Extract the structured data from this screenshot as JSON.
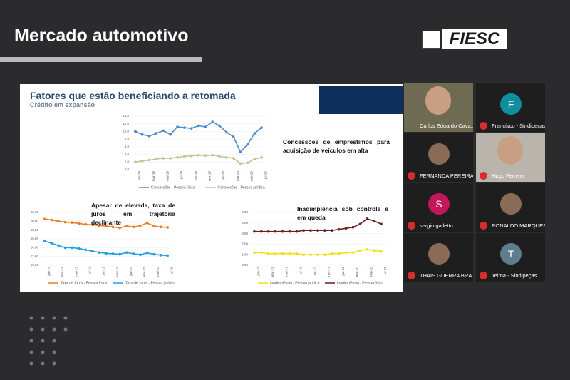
{
  "header": {
    "title": "Mercado automotivo",
    "logo": "FIESC"
  },
  "slide": {
    "title": "Fatores que estão beneficiando a retomada",
    "subtitle": "Crédito em expansão",
    "charts": [
      {
        "type": "line",
        "annotation": "Concessões de empréstimos para aquisição de veículos em alta",
        "categories": [
          "jan-19",
          null,
          "mar-19",
          null,
          "mai-19",
          null,
          "jul-19",
          null,
          "set-19",
          null,
          "nov-19",
          null,
          "jan-20",
          null,
          "mar-20",
          null,
          "mai-20",
          null,
          "jul-20"
        ],
        "ylim": [
          0,
          14
        ],
        "yticks": [
          {
            "value": 0,
            "label": "0,0"
          },
          {
            "value": 2,
            "label": "2,0"
          },
          {
            "value": 4,
            "label": "4,0"
          },
          {
            "value": 6,
            "label": "6,0"
          },
          {
            "value": 8,
            "label": "8,0"
          },
          {
            "value": 10,
            "label": "10,0"
          },
          {
            "value": 12,
            "label": "12,0"
          },
          {
            "value": 14,
            "label": "14,0"
          }
        ],
        "series": [
          {
            "name": "Concessões - Pessoa física",
            "color": "#4a8ccf",
            "values": [
              10,
              9.2,
              8.8,
              9.5,
              10.2,
              9.2,
              11.2,
              11,
              10.8,
              11.5,
              11.2,
              12.5,
              11.5,
              9.8,
              8.6,
              4.6,
              6.6,
              9.5,
              11
            ]
          },
          {
            "name": "Concessões - Pessoa jurídica",
            "color": "#c8bf94",
            "values": [
              2,
              2.3,
              2.5,
              2.8,
              3,
              3,
              3.2,
              3.5,
              3.6,
              3.8,
              3.7,
              3.8,
              3.5,
              3.2,
              3,
              1.6,
              1.8,
              2.8,
              3.2
            ]
          }
        ]
      },
      {
        "type": "line",
        "annotation": "Apesar de elevada, taxa de juros em trajetória declinante",
        "categories": [
          "jan-19",
          null,
          "mar-19",
          null,
          "mai-19",
          null,
          "jul-19",
          null,
          "set-19",
          null,
          "nov-19",
          null,
          "jan-20",
          null,
          "mar-20",
          null,
          "mai-20",
          null,
          "jul-20"
        ],
        "ylim": [
          10,
          22
        ],
        "yticks": [
          {
            "value": 10,
            "label": "10,00"
          },
          {
            "value": 12,
            "label": "12,00"
          },
          {
            "value": 14,
            "label": "14,00"
          },
          {
            "value": 16,
            "label": "16,00"
          },
          {
            "value": 18,
            "label": "18,00"
          },
          {
            "value": 20,
            "label": "20,00"
          },
          {
            "value": 22,
            "label": "22,00"
          }
        ],
        "series": [
          {
            "name": "Taxa de Juros - Pessoa física",
            "color": "#ee7d22",
            "values": [
              20.5,
              20.3,
              20,
              19.8,
              19.7,
              19.5,
              19.3,
              19.2,
              19,
              18.9,
              18.7,
              18.5,
              18.9,
              18.7,
              19,
              19.6,
              18.9,
              18.7,
              18.6
            ]
          },
          {
            "name": "Taxa de Juros - Pessoa jurídica",
            "color": "#1ea0e6",
            "values": [
              15.5,
              15,
              14.5,
              14,
              14,
              13.8,
              13.5,
              13.2,
              12.9,
              12.7,
              12.6,
              12.5,
              12.9,
              12.6,
              12.4,
              12.8,
              12.5,
              12.3,
              12.2
            ]
          }
        ]
      },
      {
        "type": "line",
        "annotation": "Inadimplência sob controle e em queda",
        "categories": [
          "jan-19",
          null,
          "mar-19",
          null,
          "mai-19",
          null,
          "jul-19",
          null,
          "set-19",
          null,
          "nov-19",
          null,
          "jan-20",
          null,
          "mar-20",
          null,
          "mai-20",
          null,
          "jul-20"
        ],
        "ylim": [
          0,
          5
        ],
        "yticks": [
          {
            "value": 0,
            "label": "0,00"
          },
          {
            "value": 1,
            "label": "1,00"
          },
          {
            "value": 2,
            "label": "2,00"
          },
          {
            "value": 3,
            "label": "3,00"
          },
          {
            "value": 4,
            "label": "4,00"
          },
          {
            "value": 5,
            "label": "5,00"
          }
        ],
        "series": [
          {
            "name": "Inadimplência - Pessoa jurídica",
            "color": "#f2e01a",
            "values": [
              1.2,
              1.2,
              1.1,
              1.1,
              1.1,
              1.1,
              1.1,
              1,
              1,
              1,
              1,
              1.1,
              1.1,
              1.2,
              1.2,
              1.4,
              1.5,
              1.4,
              1.3
            ]
          },
          {
            "name": "Inadimplência - Pessoa física",
            "color": "#6b1e1e",
            "values": [
              3.2,
              3.2,
              3.2,
              3.2,
              3.2,
              3.2,
              3.2,
              3.3,
              3.3,
              3.3,
              3.3,
              3.3,
              3.4,
              3.5,
              3.6,
              3.9,
              4.4,
              4.2,
              3.9
            ]
          }
        ]
      }
    ]
  },
  "participants": [
    {
      "name": "Carlos Eduardo Cava..."
    },
    {
      "name": "Francisco - Sindipeças",
      "avatar_letter": "F"
    },
    {
      "name": "FERNANDA PEREIRA..."
    },
    {
      "name": "Hugo Ferreira"
    },
    {
      "name": "sergio galletto",
      "avatar_letter": "S"
    },
    {
      "name": "RONALDO MARQUES..."
    },
    {
      "name": "THAIS GUERRA BRA..."
    },
    {
      "name": "Telma - Sindipeças",
      "avatar_letter": "T"
    }
  ]
}
